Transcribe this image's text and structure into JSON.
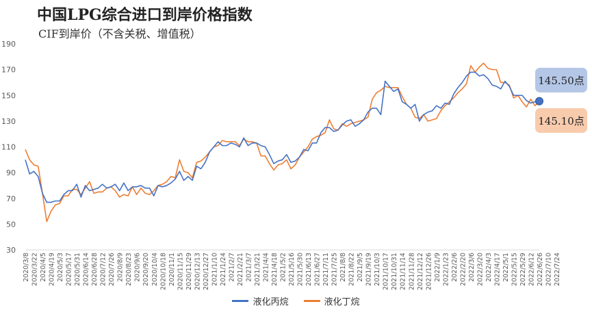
{
  "title": "中国LPG综合进口到岸价格指数",
  "subtitle": "CIF到岸价（不含关税、增值税）",
  "callouts": {
    "propane": "145.50点",
    "butane": "145.10点"
  },
  "colors": {
    "propane": "#4472c4",
    "butane": "#ed7d31",
    "marker": "#4472c4"
  },
  "chart_data": {
    "type": "line",
    "ylim": [
      30,
      190
    ],
    "yticks": [
      30,
      50,
      70,
      90,
      110,
      130,
      150,
      170,
      190
    ],
    "grid": false,
    "legend_position": "bottom",
    "x_start": "2020/3/8",
    "x_end": "2022/7/24",
    "x_step_days": 7,
    "x_tick_labels": [
      "2020/3/8",
      "2020/3/22",
      "2020/4/5",
      "2020/4/19",
      "2020/5/3",
      "2020/5/17",
      "2020/5/31",
      "2020/6/14",
      "2020/6/28",
      "2020/7/12",
      "2020/7/26",
      "2020/8/9",
      "2020/8/23",
      "2020/9/6",
      "2020/9/20",
      "2020/10/4",
      "2020/10/18",
      "2020/11/1",
      "2020/11/15",
      "2020/11/29",
      "2020/12/13",
      "2020/12/27",
      "2021/1/10",
      "2021/1/24",
      "2021/2/7",
      "2021/2/21",
      "2021/3/7",
      "2021/3/21",
      "2021/4/4",
      "2021/4/18",
      "2021/5/2",
      "2021/5/16",
      "2021/5/30",
      "2021/6/13",
      "2021/6/27",
      "2021/7/11",
      "2021/7/25",
      "2021/8/8",
      "2021/8/22",
      "2021/9/5",
      "2021/9/19",
      "2021/10/3",
      "2021/10/17",
      "2021/10/31",
      "2021/11/14",
      "2021/11/28",
      "2021/12/12",
      "2021/12/26",
      "2022/1/9",
      "2022/1/23",
      "2022/2/6",
      "2022/2/20",
      "2022/3/6",
      "2022/3/20",
      "2022/4/3",
      "2022/4/17",
      "2022/5/1",
      "2022/5/15",
      "2022/5/29",
      "2022/6/12",
      "2022/6/26",
      "2022/7/10",
      "2022/7/24"
    ],
    "series": [
      {
        "name": "液化丙烷",
        "values": [
          100,
          89,
          91,
          87,
          74,
          67,
          67,
          68,
          68,
          73,
          76,
          76,
          81,
          71,
          80,
          76,
          77,
          78,
          81,
          78,
          79,
          81,
          76,
          82,
          76,
          79,
          79,
          80,
          78,
          78,
          72,
          80,
          79,
          80,
          82,
          85,
          91,
          84,
          87,
          84,
          95,
          93,
          98,
          106,
          110,
          114,
          111,
          111,
          113,
          112,
          110,
          117,
          111,
          113,
          113,
          111,
          110,
          104,
          97,
          99,
          100,
          104,
          98,
          99,
          102,
          108,
          107,
          113,
          113,
          121,
          125,
          125,
          122,
          123,
          127,
          130,
          131,
          126,
          128,
          131,
          137,
          140,
          140,
          135,
          161,
          157,
          153,
          155,
          145,
          143,
          140,
          143,
          130,
          135,
          137,
          138,
          142,
          140,
          144,
          143,
          151,
          156,
          160,
          165,
          168,
          168,
          165,
          166,
          163,
          158,
          157,
          155,
          161,
          157,
          150,
          150,
          150,
          146,
          144,
          145,
          145.5
        ],
        "marker_last": true
      },
      {
        "name": "液化丁烷",
        "values": [
          108,
          100,
          96,
          95,
          74,
          52,
          60,
          65,
          66,
          72,
          72,
          77,
          77,
          73,
          78,
          83,
          74,
          75,
          75,
          78,
          79,
          76,
          71,
          73,
          72,
          79,
          73,
          78,
          74,
          73,
          76,
          80,
          81,
          83,
          87,
          86,
          100,
          91,
          90,
          86,
          98,
          99,
          102,
          106,
          110,
          111,
          115,
          114,
          114,
          114,
          111,
          116,
          114,
          114,
          113,
          103,
          103,
          97,
          92,
          96,
          97,
          100,
          93,
          96,
          102,
          106,
          110,
          116,
          118,
          119,
          121,
          131,
          124,
          123,
          128,
          126,
          128,
          129,
          130,
          131,
          133,
          147,
          152,
          154,
          157,
          156,
          156,
          156,
          149,
          143,
          140,
          133,
          132,
          135,
          130,
          131,
          132,
          138,
          142,
          145,
          148,
          152,
          155,
          159,
          173,
          168,
          172,
          175,
          171,
          170,
          170,
          160,
          160,
          158,
          148,
          150,
          145,
          141,
          147,
          142,
          145.1
        ]
      }
    ],
    "legend": [
      "液化丙烷",
      "液化丁烷"
    ]
  }
}
